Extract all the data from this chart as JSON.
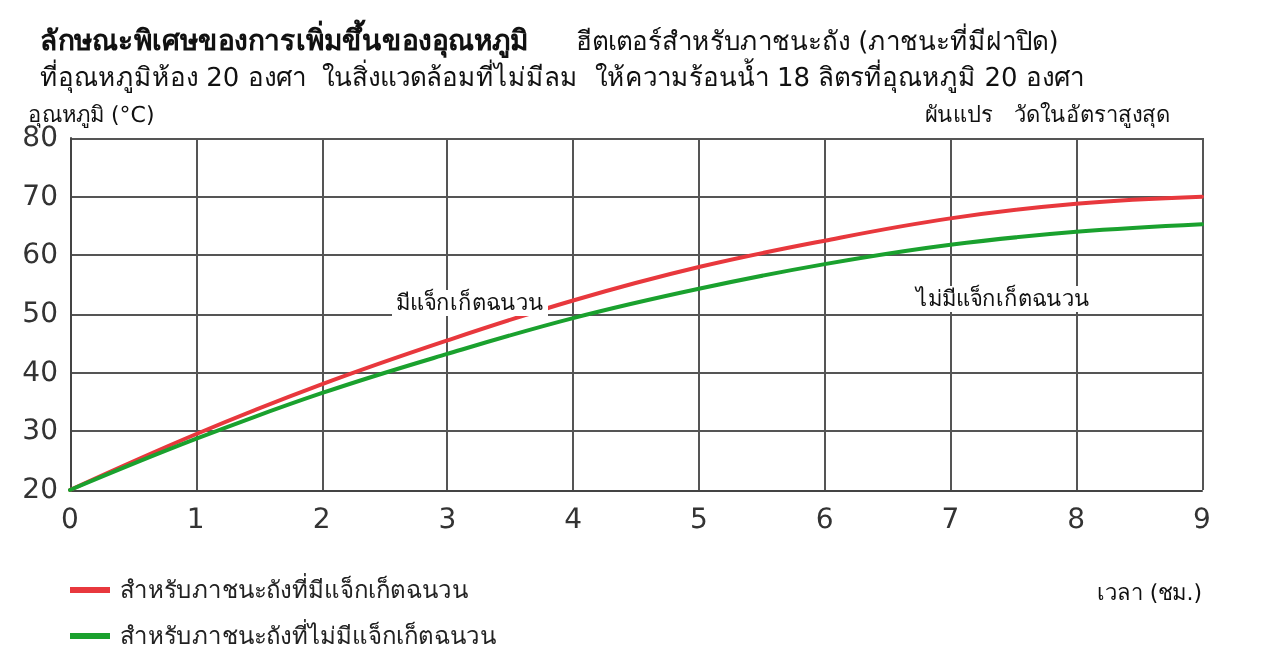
{
  "chart_data": {
    "type": "line",
    "title": "ลักษณะพิเศษของการเพิ่มขึ้นของอุณหภูมิ",
    "subtitle": "ฮีตเตอร์สำหรับภาชนะถัง (ภาชนะที่มีฝาปิด)\nที่อุณหภูมิห้อง 20 องศา  ในสิ่งแวดล้อมที่ไม่มีลม  ให้ความร้อนน้ำ 18 ลิตรที่อุณหภูมิ 20 องศา",
    "xlabel": "เวลา (ชม.)",
    "ylabel": "อุณหภูมิ (°C)",
    "x": [
      0,
      1,
      2,
      3,
      4,
      5,
      6,
      7,
      8,
      9
    ],
    "series": [
      {
        "name": "สำหรับภาชนะถังที่มีแจ็กเก็ตฉนวน",
        "color": "#e8383d",
        "values": [
          20,
          29.5,
          38,
          45.5,
          52.3,
          58,
          62.5,
          66.3,
          68.8,
          70
        ]
      },
      {
        "name": "สำหรับภาชนะถังที่ไม่มีแจ็กเก็ตฉนวน",
        "color": "#1aa12e",
        "values": [
          20,
          28.7,
          36.5,
          43.2,
          49.3,
          54.3,
          58.5,
          61.8,
          64,
          65.3
        ]
      }
    ],
    "xlim": [
      0,
      9
    ],
    "xticks": [
      0,
      1,
      2,
      3,
      4,
      5,
      6,
      7,
      8,
      9
    ],
    "ylim": [
      20,
      80
    ],
    "yticks": [
      20,
      30,
      40,
      50,
      60,
      70,
      80
    ],
    "grid": true,
    "legend": "bottom left",
    "marker": "none",
    "line_style": "solid",
    "annotations": [
      "มีแจ็กเก็ตฉนวน",
      "ไม่มีแจ็กเก็ตฉนวน",
      "ผันแปร   วัดในอัตราสูงสุด"
    ]
  }
}
